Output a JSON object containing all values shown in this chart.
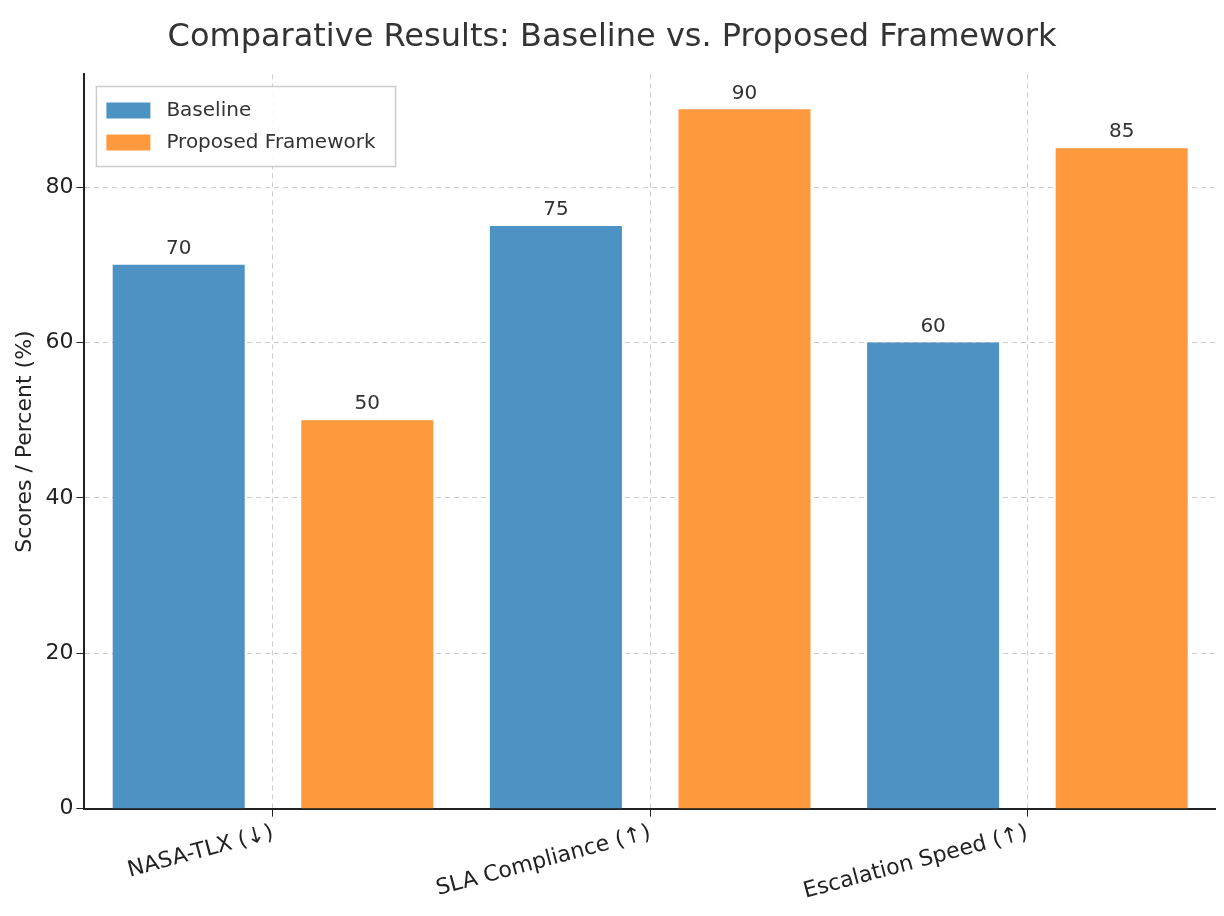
{
  "chart_data": {
    "type": "bar",
    "title": "Comparative Results: Baseline vs. Proposed Framework",
    "ylabel": "Scores / Percent (%)",
    "categories": [
      "NASA-TLX (↓)",
      "SLA Compliance (↑)",
      "Escalation Speed (↑)"
    ],
    "series": [
      {
        "name": "Baseline",
        "color": "#4c92c3",
        "values": [
          70,
          75,
          60
        ]
      },
      {
        "name": "Proposed Framework",
        "color": "#ff993e",
        "values": [
          50,
          90,
          85
        ]
      }
    ],
    "ylim": [
      0,
      94.5
    ],
    "yticks": [
      0,
      20,
      40,
      60,
      80
    ],
    "grid": true,
    "legend": "top left",
    "data_labels": true
  }
}
